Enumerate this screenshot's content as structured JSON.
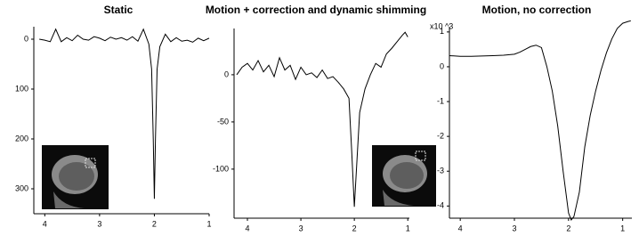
{
  "chart_data": [
    {
      "type": "line",
      "title": "Static",
      "color": "#000000",
      "x": [
        4.1,
        4.0,
        3.9,
        3.8,
        3.7,
        3.6,
        3.5,
        3.4,
        3.3,
        3.2,
        3.1,
        3.0,
        2.9,
        2.8,
        2.7,
        2.6,
        2.5,
        2.4,
        2.3,
        2.2,
        2.1,
        2.05,
        2.02,
        2.0,
        1.98,
        1.95,
        1.9,
        1.8,
        1.7,
        1.6,
        1.5,
        1.4,
        1.3,
        1.2,
        1.1,
        1.0
      ],
      "values": [
        0,
        2,
        5,
        -20,
        5,
        -3,
        3,
        -8,
        0,
        2,
        -5,
        -2,
        3,
        -4,
        0,
        -3,
        2,
        -5,
        4,
        -20,
        10,
        60,
        200,
        320,
        200,
        60,
        15,
        -10,
        5,
        -3,
        4,
        2,
        6,
        -2,
        3,
        -2
      ],
      "xlim": [
        4.2,
        1.0
      ],
      "ylim": [
        350,
        -25
      ],
      "xticks": [
        4,
        3,
        2,
        1
      ],
      "yticks": [
        0,
        100,
        200,
        300
      ]
    },
    {
      "type": "line",
      "title": "Motion + correction and dynamic shimming",
      "color": "#000000",
      "x": [
        4.2,
        4.1,
        4.0,
        3.9,
        3.8,
        3.7,
        3.6,
        3.5,
        3.4,
        3.3,
        3.2,
        3.1,
        3.0,
        2.9,
        2.8,
        2.7,
        2.6,
        2.5,
        2.4,
        2.3,
        2.2,
        2.1,
        2.05,
        2.0,
        1.95,
        1.9,
        1.8,
        1.7,
        1.6,
        1.5,
        1.4,
        1.3,
        1.2,
        1.1,
        1.05,
        1.0
      ],
      "values": [
        0,
        8,
        12,
        5,
        15,
        3,
        10,
        -2,
        18,
        5,
        10,
        -5,
        8,
        0,
        2,
        -3,
        5,
        -4,
        -2,
        -8,
        -15,
        -25,
        -80,
        -140,
        -90,
        -40,
        -15,
        0,
        12,
        8,
        22,
        28,
        35,
        42,
        45,
        40
      ],
      "xlim": [
        4.25,
        0.97
      ],
      "ylim": [
        -152,
        49
      ],
      "xticks": [
        4,
        3,
        2,
        1
      ],
      "yticks": [
        0,
        -50,
        -100
      ]
    },
    {
      "type": "line",
      "title": "Motion, no correction",
      "y_label": "x10 ^3",
      "color": "#000000",
      "x": [
        4.2,
        4.0,
        3.8,
        3.6,
        3.4,
        3.2,
        3.0,
        2.9,
        2.8,
        2.7,
        2.6,
        2.5,
        2.4,
        2.3,
        2.2,
        2.1,
        2.0,
        1.95,
        1.9,
        1.8,
        1.7,
        1.6,
        1.5,
        1.4,
        1.3,
        1.2,
        1.1,
        1.0,
        0.9,
        0.85
      ],
      "values": [
        0.32,
        0.3,
        0.3,
        0.31,
        0.32,
        0.33,
        0.36,
        0.42,
        0.5,
        0.58,
        0.62,
        0.55,
        0.0,
        -0.7,
        -1.7,
        -3.0,
        -4.2,
        -4.4,
        -4.3,
        -3.6,
        -2.3,
        -1.4,
        -0.7,
        -0.1,
        0.4,
        0.8,
        1.1,
        1.25,
        1.3,
        1.32
      ],
      "xlim": [
        4.2,
        0.83
      ],
      "ylim": [
        -4.35,
        1.15
      ],
      "xticks": [
        4,
        3,
        2,
        1
      ],
      "yticks": [
        1,
        0,
        -1,
        -2,
        -3,
        -4
      ]
    }
  ]
}
